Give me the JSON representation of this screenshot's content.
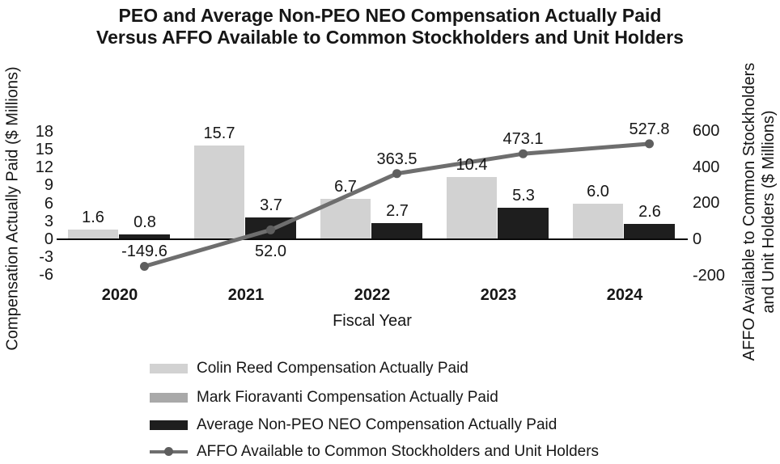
{
  "page_background": "#ffffff",
  "chart_data": {
    "type": "bar+line combo (dual axis)",
    "title": "PEO and Average Non-PEO NEO Compensation Actually Paid Versus AFFO Available to Common Stockholders and Unit Holders",
    "title_lines": [
      "PEO and Average Non-PEO NEO Compensation Actually Paid",
      "Versus AFFO Available to Common Stockholders and Unit Holders"
    ],
    "categories": [
      "2020",
      "2021",
      "2022",
      "2023",
      "2024"
    ],
    "x_axis": {
      "title": "Fiscal Year"
    },
    "left_axis": {
      "title": "Compensation Actually Paid ($ Millions)",
      "ticks": [
        18,
        15,
        12,
        9,
        6,
        3,
        0,
        -3,
        -6
      ],
      "range": [
        -6,
        18
      ]
    },
    "right_axis": {
      "title_lines": [
        "AFFO Available to Common Stockholders",
        "and Unit Holders ($ Millions)"
      ],
      "ticks": [
        600,
        400,
        200,
        0,
        -200
      ],
      "range": [
        -200,
        600
      ]
    },
    "grid": false,
    "series": [
      {
        "name": "PEO Compensation Actually Paid (light gray bars)",
        "type": "bar",
        "axis": "left",
        "color": "#d2d2d2",
        "values": [
          1.6,
          15.7,
          6.7,
          10.4,
          6.0
        ],
        "labels": [
          "1.6",
          "15.7",
          "6.7",
          "10.4",
          "6.0"
        ]
      },
      {
        "name": "Average Non-PEO NEO Compensation Actually Paid (black bars)",
        "type": "bar",
        "axis": "left",
        "color": "#1e1e1e",
        "values": [
          0.8,
          3.7,
          2.7,
          5.3,
          2.6
        ],
        "labels": [
          "0.8",
          "3.7",
          "2.7",
          "5.3",
          "2.6"
        ]
      },
      {
        "name": "AFFO Available to Common Stockholders and Unit Holders (line)",
        "type": "line",
        "axis": "right",
        "color": "#6e6e6e",
        "marker_color": "#5e5e5e",
        "values": [
          -149.6,
          52.0,
          363.5,
          473.1,
          527.8
        ],
        "labels": [
          "-149.6",
          "52.0",
          "363.5",
          "473.1",
          "527.8"
        ],
        "label_positions": [
          "above",
          "below",
          "above",
          "above",
          "above"
        ]
      }
    ],
    "legend": {
      "position": "bottom",
      "items": [
        {
          "label": "Colin Reed Compensation Actually Paid",
          "swatch": "bar",
          "color": "#d2d2d2"
        },
        {
          "label": "Mark Fioravanti Compensation Actually Paid",
          "swatch": "bar",
          "color": "#a9a9a9"
        },
        {
          "label": "Average Non-PEO NEO Compensation Actually Paid",
          "swatch": "bar",
          "color": "#1e1e1e"
        },
        {
          "label": "AFFO Available to Common Stockholders and Unit Holders",
          "swatch": "line-marker",
          "color": "#6e6e6e",
          "marker_color": "#5e5e5e"
        }
      ]
    }
  }
}
